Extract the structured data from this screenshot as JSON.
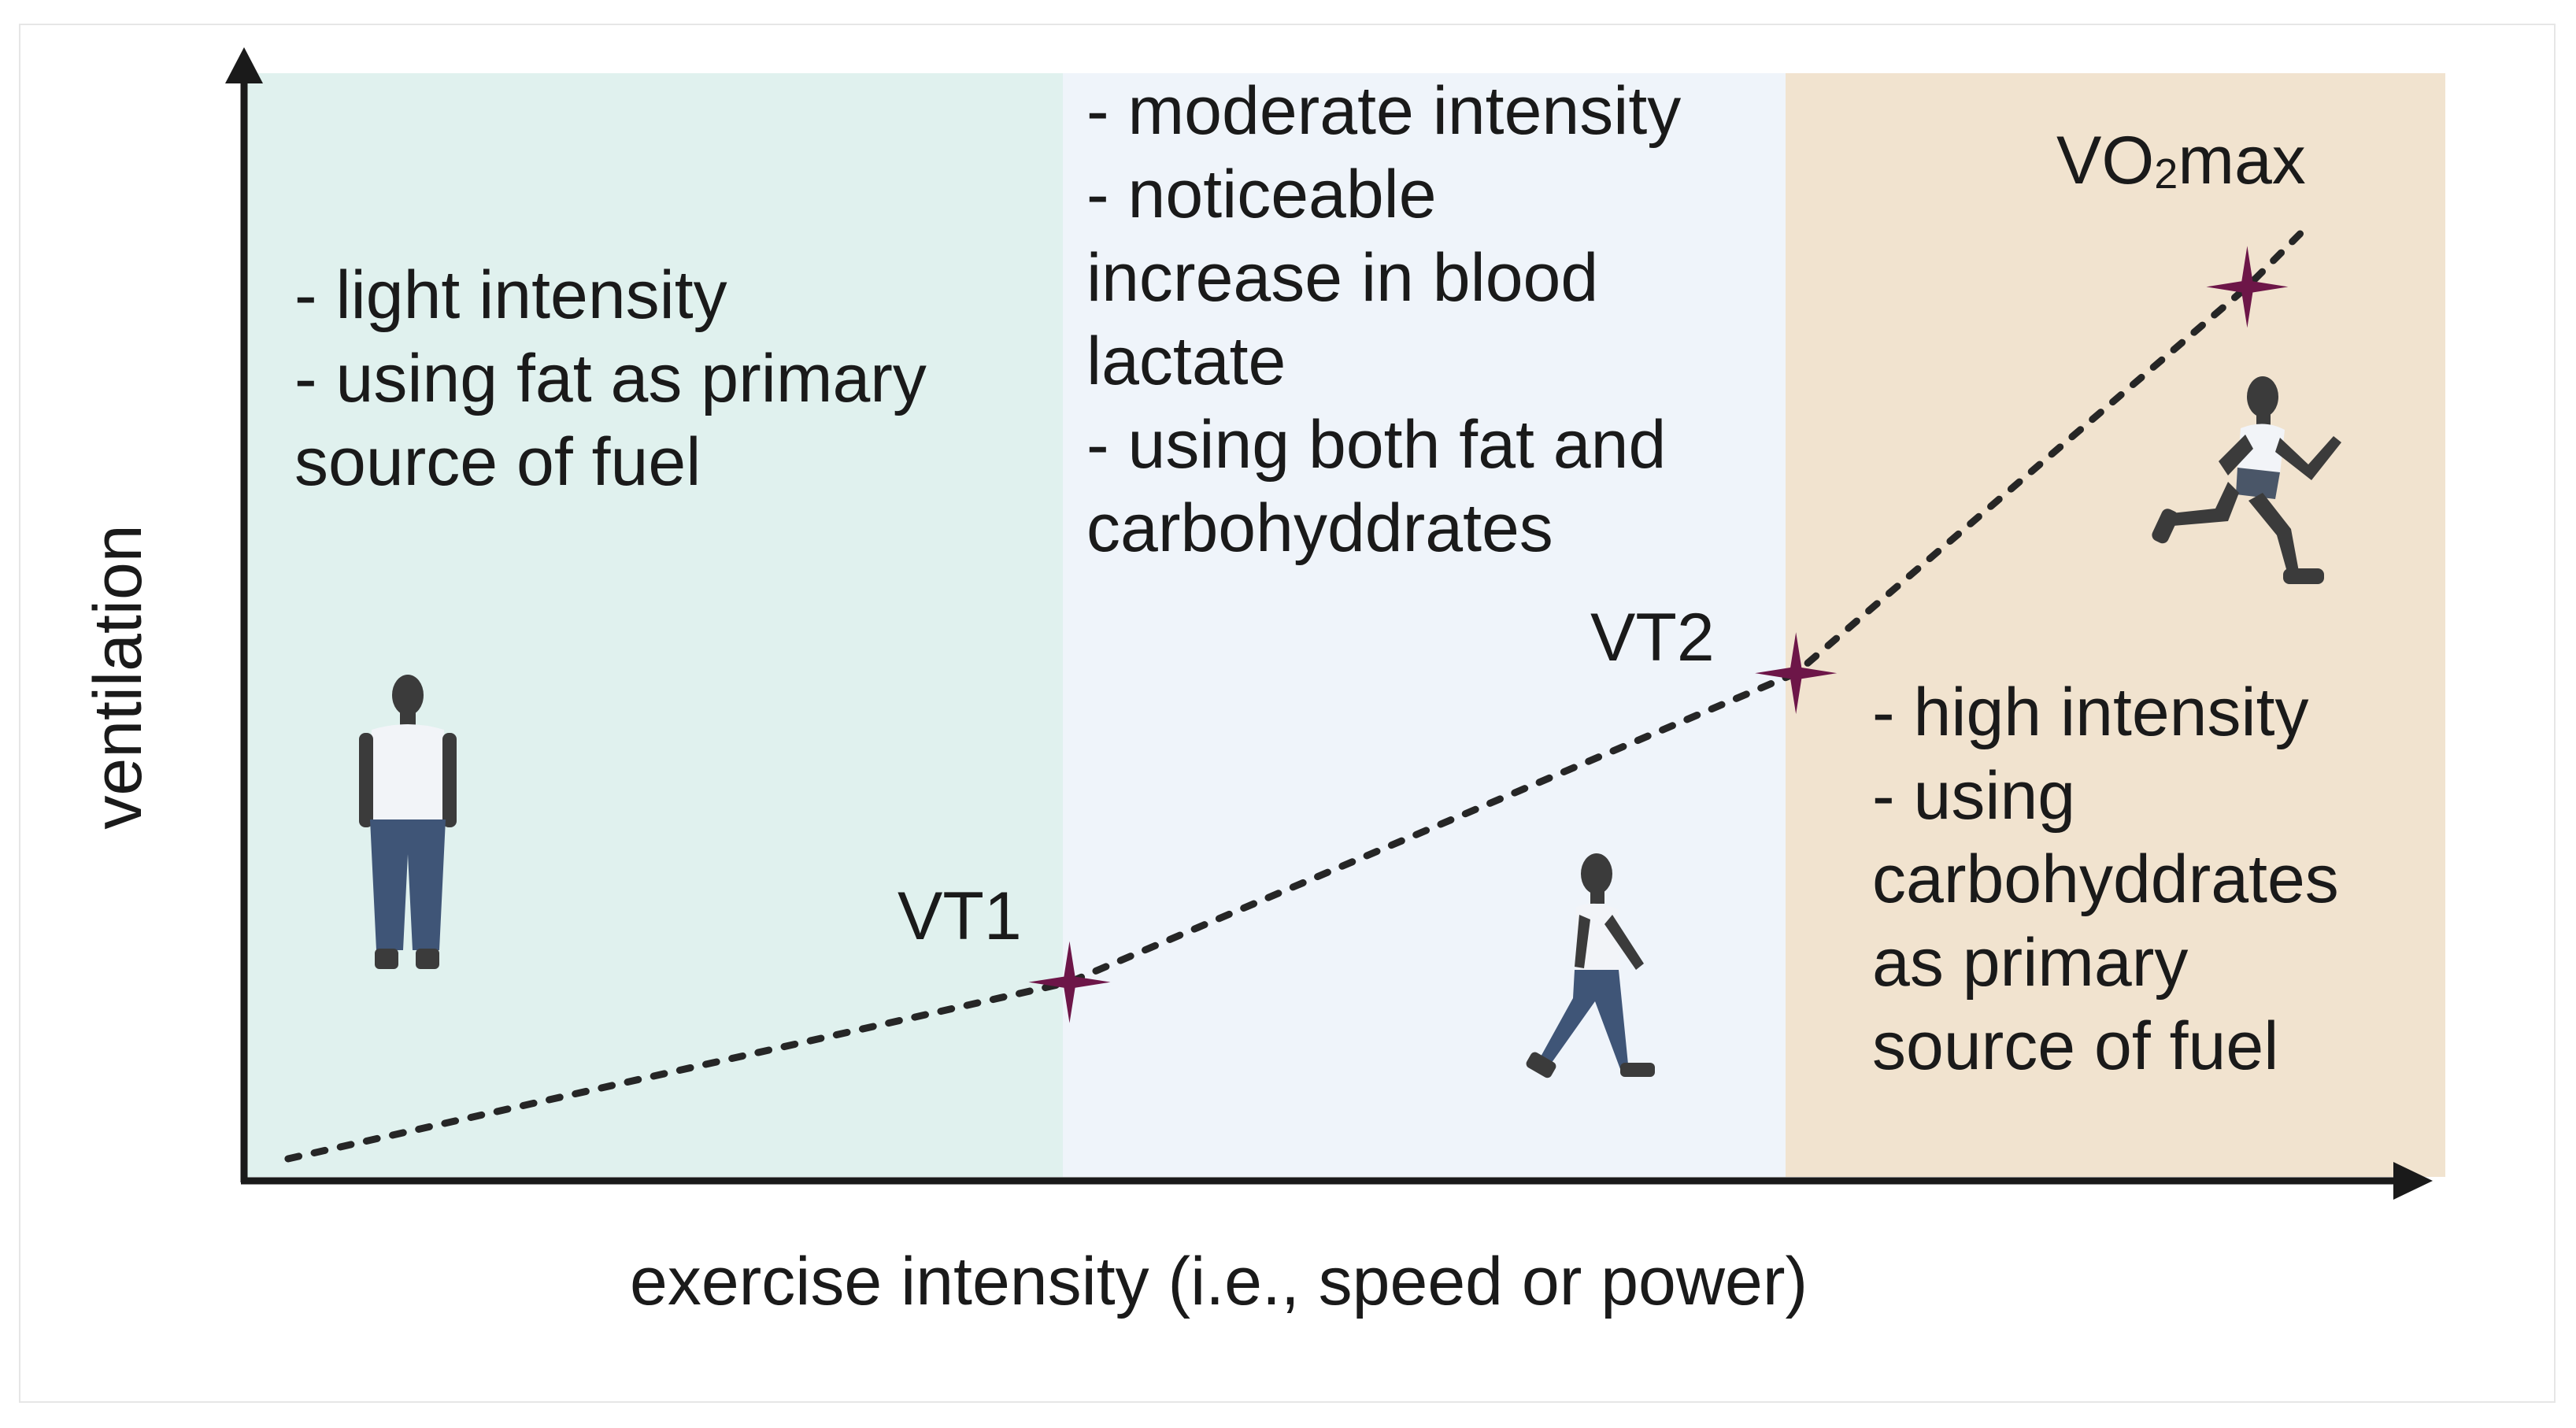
{
  "colors": {
    "light_zone": "#e0f1ee",
    "moderate_zone": "#eff4fa",
    "high_zone": "#f1e3cf",
    "threshold_marker": "#6d1648",
    "axis": "#1a1a1a",
    "curve": "#262626",
    "figure_skin": "#3b3b3b",
    "figure_shirt": "#f2f4f8",
    "figure_pants": "#3f5577",
    "figure_pants_runner": "#4a5668"
  },
  "axes": {
    "x_title": "exercise intensity (i.e., speed or power)",
    "y_title": "ventilation"
  },
  "zones": {
    "light": {
      "text": "- light intensity\n- using fat as primary\nsource of fuel",
      "figure": "standing-person-icon"
    },
    "moderate": {
      "text": "- moderate intensity\n- noticeable\nincrease  in blood\nlactate\n- using both fat and\ncarbohyddrates",
      "figure": "walking-person-icon"
    },
    "high": {
      "text": "- high intensity\n- using\ncarbohyddrates\nas primary\nsource of fuel",
      "figure": "running-person-icon"
    }
  },
  "thresholds": {
    "vt1": "VT1",
    "vt2": "VT2",
    "vo2max_prefix": "VO",
    "vo2max_sub": "2",
    "vo2max_suffix": "max"
  },
  "chart_data": {
    "type": "line",
    "title": "",
    "xlabel": "exercise intensity (i.e., speed or power)",
    "ylabel": "ventilation",
    "xlim": [
      0,
      100
    ],
    "ylim": [
      0,
      100
    ],
    "axis_ticks": false,
    "line_style": "dotted",
    "series": [
      {
        "name": "ventilation",
        "points": [
          {
            "x": 2,
            "y": 2
          },
          {
            "x": 37.5,
            "y": 18
          },
          {
            "x": 70.5,
            "y": 46
          },
          {
            "x": 91,
            "y": 81
          },
          {
            "x": 93.5,
            "y": 86
          }
        ]
      }
    ],
    "markers": [
      {
        "label": "VT1",
        "x": 37.5,
        "y": 18
      },
      {
        "label": "VT2",
        "x": 70.5,
        "y": 46
      },
      {
        "label": "VO2max",
        "x": 91,
        "y": 81
      }
    ],
    "zone_boundaries_x": [
      37.5,
      70.5,
      100
    ],
    "zone_names": [
      "light",
      "moderate",
      "high"
    ]
  }
}
